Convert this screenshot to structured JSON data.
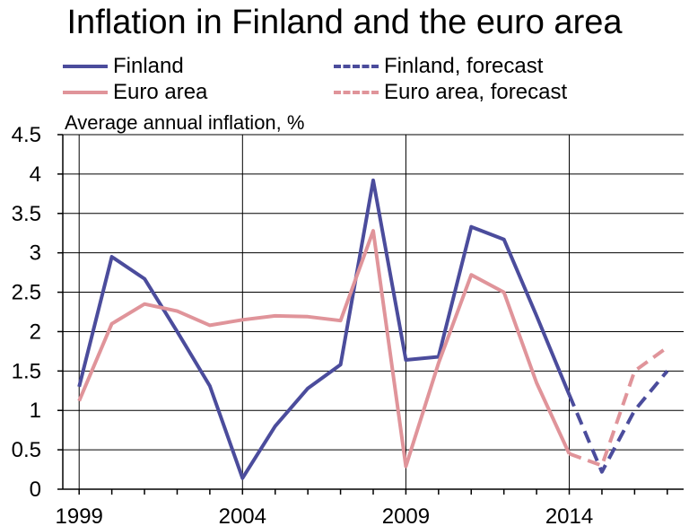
{
  "chart_data": {
    "type": "line",
    "title": "Inflation in Finland and the euro area",
    "ylabel": "Average annual inflation, %",
    "xlabel": "",
    "ylim": [
      0,
      4.5
    ],
    "xlim": [
      1998.5,
      2017.5
    ],
    "yticks": [
      "0",
      "0.5",
      "1",
      "1.5",
      "2",
      "2.5",
      "3",
      "3.5",
      "4",
      "4.5"
    ],
    "xticks": [
      "1999",
      "2004",
      "2009",
      "2014"
    ],
    "x": [
      1999,
      2000,
      2001,
      2002,
      2003,
      2004,
      2005,
      2006,
      2007,
      2008,
      2009,
      2010,
      2011,
      2012,
      2013,
      2014,
      2015,
      2016,
      2017
    ],
    "series": [
      {
        "name": "Finland",
        "color": "#4b4c9c",
        "dash": false,
        "x": [
          1999,
          2000,
          2001,
          2002,
          2003,
          2004,
          2005,
          2006,
          2007,
          2008,
          2009,
          2010,
          2011,
          2012,
          2013,
          2014
        ],
        "values": [
          1.3,
          2.95,
          2.67,
          2.0,
          1.31,
          0.14,
          0.8,
          1.28,
          1.58,
          3.92,
          1.64,
          1.68,
          3.33,
          3.17,
          2.2,
          1.2
        ]
      },
      {
        "name": "Euro area",
        "color": "#e0949a",
        "dash": false,
        "x": [
          1999,
          2000,
          2001,
          2002,
          2003,
          2004,
          2005,
          2006,
          2007,
          2008,
          2009,
          2010,
          2011,
          2012,
          2013,
          2014
        ],
        "values": [
          1.12,
          2.1,
          2.35,
          2.26,
          2.08,
          2.15,
          2.2,
          2.19,
          2.14,
          3.28,
          0.29,
          1.6,
          2.72,
          2.5,
          1.35,
          0.45
        ]
      },
      {
        "name": "Finland, forecast",
        "color": "#4b4c9c",
        "dash": true,
        "x": [
          2014,
          2015,
          2016,
          2017
        ],
        "values": [
          1.2,
          0.22,
          1.0,
          1.5
        ]
      },
      {
        "name": "Euro area, forecast",
        "color": "#e0949a",
        "dash": true,
        "x": [
          2014,
          2015,
          2016,
          2017
        ],
        "values": [
          0.45,
          0.3,
          1.5,
          1.8
        ]
      }
    ],
    "grid": true,
    "legend_position": "top"
  }
}
